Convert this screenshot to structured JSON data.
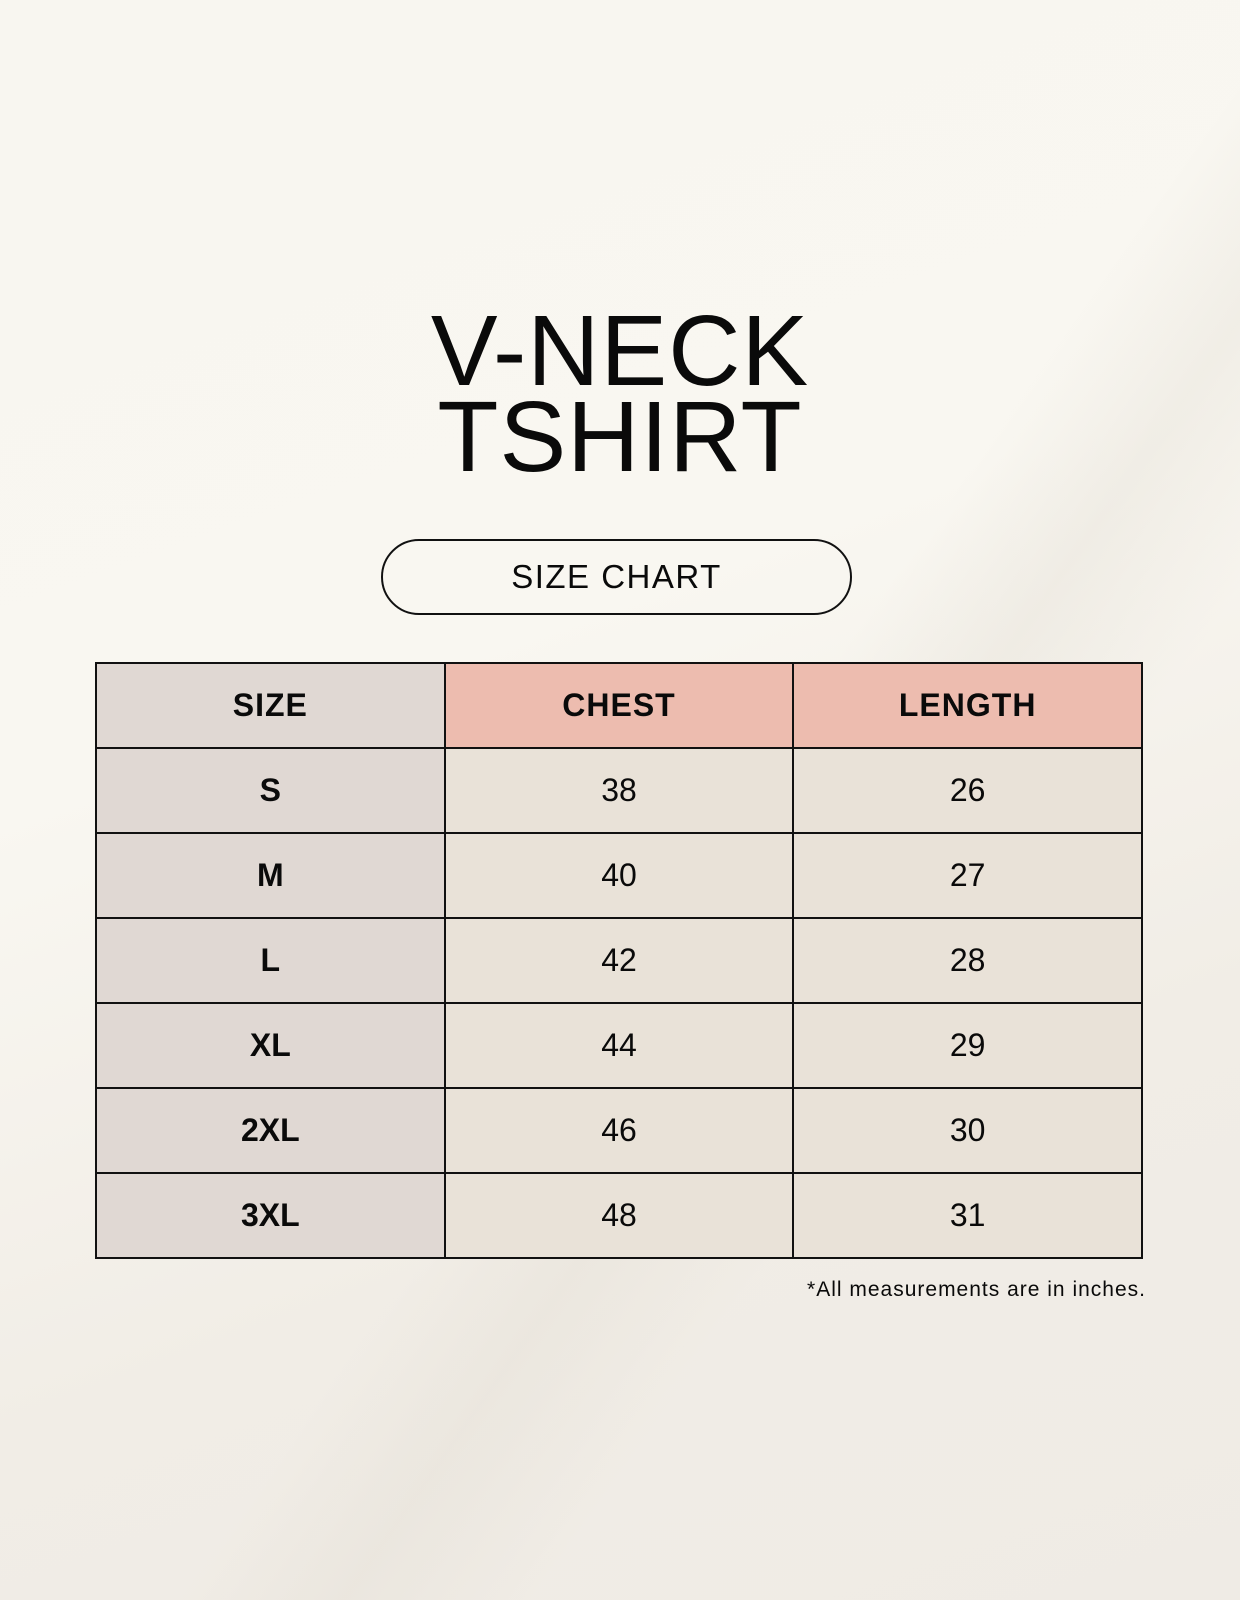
{
  "title": {
    "line1": "V-NECK",
    "line2": "TSHIRT"
  },
  "badge": "SIZE CHART",
  "table": {
    "headers": [
      "SIZE",
      "CHEST",
      "LENGTH"
    ],
    "rows": [
      [
        "S",
        "38",
        "26"
      ],
      [
        "M",
        "40",
        "27"
      ],
      [
        "L",
        "42",
        "28"
      ],
      [
        "XL",
        "44",
        "29"
      ],
      [
        "2XL",
        "46",
        "30"
      ],
      [
        "3XL",
        "48",
        "31"
      ]
    ]
  },
  "footnote": "*All measurements are in inches.",
  "colors": {
    "size_column": "#e0d8d3",
    "header_accent": "#edbcaf",
    "cell": "#e9e2d8"
  }
}
